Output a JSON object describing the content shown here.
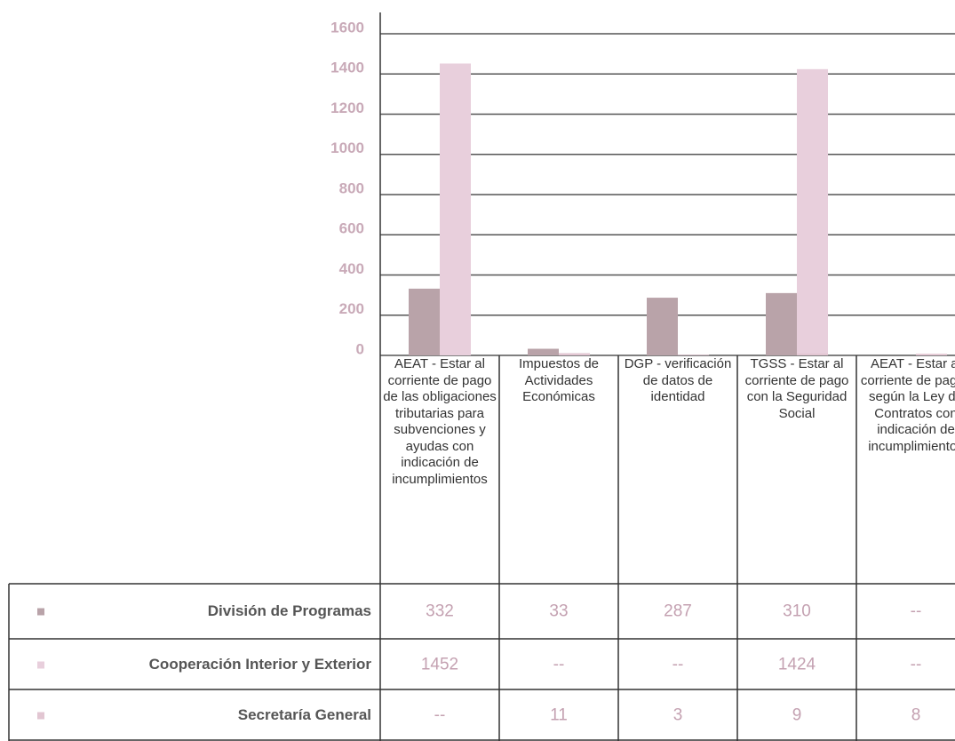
{
  "chart_data": {
    "type": "bar",
    "categories": [
      "AEAT - Estar al corriente de pago de las obligaciones tributarias para subvenciones y ayudas con indicación de incumplimientos",
      "Impuestos de Actividades Económicas",
      "DGP - verificación de datos de identidad",
      "TGSS - Estar al corriente de pago con la Seguridad Social",
      "AEAT - Estar al corriente de pagos según la Ley de Contratos con indicación de incumplimientos"
    ],
    "series": [
      {
        "name": "División de Programas",
        "color": "#b9a3a9",
        "values": [
          332,
          33,
          287,
          310,
          null
        ],
        "value_labels": [
          "332",
          "33",
          "287",
          "310",
          "--"
        ]
      },
      {
        "name": "Cooperación Interior y Exterior",
        "color": "#e8cfdc",
        "values": [
          1452,
          null,
          null,
          1424,
          null
        ],
        "value_labels": [
          "1452",
          "--",
          "--",
          "1424",
          "--"
        ]
      },
      {
        "name": "Secretaría General",
        "color": "#e2c6d2",
        "values": [
          null,
          11,
          3,
          9,
          8
        ],
        "value_labels": [
          "--",
          "11",
          "3",
          "9",
          "8"
        ]
      }
    ],
    "ylim": [
      0,
      1600
    ],
    "yticks": [
      0,
      200,
      400,
      600,
      800,
      1000,
      1200,
      1400,
      1600
    ],
    "grid": true
  }
}
